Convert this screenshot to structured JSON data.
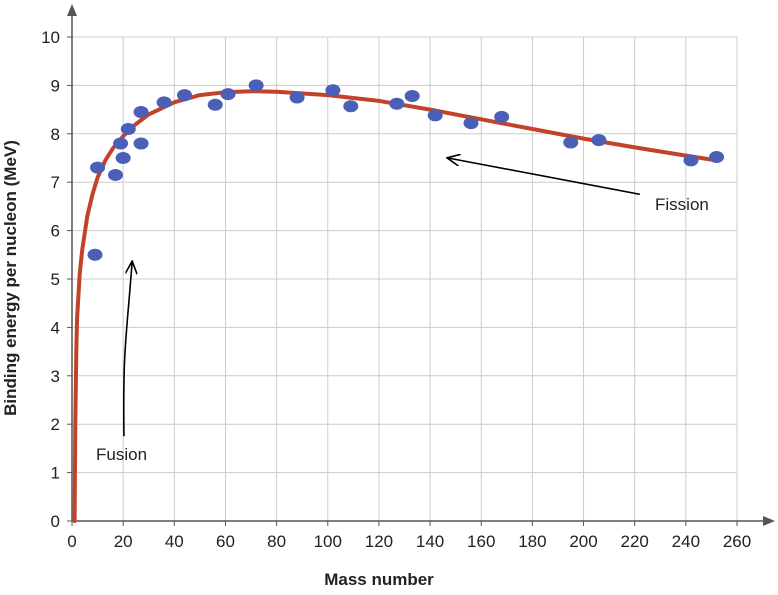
{
  "chart_data": {
    "type": "scatter",
    "title": "",
    "xlabel": "Mass number",
    "ylabel": "Binding energy per nucleon (MeV)",
    "xlim": [
      0,
      260
    ],
    "ylim": [
      0,
      10
    ],
    "x_ticks": [
      0,
      20,
      40,
      60,
      80,
      100,
      120,
      140,
      160,
      180,
      200,
      220,
      240,
      260
    ],
    "y_ticks": [
      0,
      1,
      2,
      3,
      4,
      5,
      6,
      7,
      8,
      9,
      10
    ],
    "grid": true,
    "colors": {
      "points": "#4a5fb5",
      "curve": "#c2432a",
      "grid": "#cccccc",
      "axis": "#555555",
      "arrow": "#000000"
    },
    "points": [
      {
        "x": 9,
        "y": 5.5
      },
      {
        "x": 10,
        "y": 7.3
      },
      {
        "x": 17,
        "y": 7.15
      },
      {
        "x": 19,
        "y": 7.8
      },
      {
        "x": 20,
        "y": 7.5
      },
      {
        "x": 22,
        "y": 8.1
      },
      {
        "x": 27,
        "y": 7.8
      },
      {
        "x": 27,
        "y": 8.45
      },
      {
        "x": 36,
        "y": 8.65
      },
      {
        "x": 44,
        "y": 8.8
      },
      {
        "x": 56,
        "y": 8.6
      },
      {
        "x": 61,
        "y": 8.82
      },
      {
        "x": 72,
        "y": 9.0
      },
      {
        "x": 88,
        "y": 8.75
      },
      {
        "x": 102,
        "y": 8.9
      },
      {
        "x": 109,
        "y": 8.57
      },
      {
        "x": 127,
        "y": 8.62
      },
      {
        "x": 133,
        "y": 8.78
      },
      {
        "x": 142,
        "y": 8.38
      },
      {
        "x": 156,
        "y": 8.22
      },
      {
        "x": 168,
        "y": 8.35
      },
      {
        "x": 195,
        "y": 7.82
      },
      {
        "x": 206,
        "y": 7.87
      },
      {
        "x": 242,
        "y": 7.45
      },
      {
        "x": 252,
        "y": 7.52
      }
    ],
    "curve": [
      {
        "x": 1,
        "y": 0
      },
      {
        "x": 1.3,
        "y": 2
      },
      {
        "x": 1.7,
        "y": 3.5
      },
      {
        "x": 2,
        "y": 4.2
      },
      {
        "x": 3,
        "y": 5.1
      },
      {
        "x": 4,
        "y": 5.6
      },
      {
        "x": 6,
        "y": 6.3
      },
      {
        "x": 8,
        "y": 6.75
      },
      {
        "x": 10,
        "y": 7.1
      },
      {
        "x": 13,
        "y": 7.45
      },
      {
        "x": 16,
        "y": 7.7
      },
      {
        "x": 20,
        "y": 7.95
      },
      {
        "x": 25,
        "y": 8.2
      },
      {
        "x": 30,
        "y": 8.4
      },
      {
        "x": 40,
        "y": 8.65
      },
      {
        "x": 50,
        "y": 8.8
      },
      {
        "x": 60,
        "y": 8.86
      },
      {
        "x": 70,
        "y": 8.88
      },
      {
        "x": 80,
        "y": 8.87
      },
      {
        "x": 100,
        "y": 8.8
      },
      {
        "x": 120,
        "y": 8.68
      },
      {
        "x": 140,
        "y": 8.5
      },
      {
        "x": 160,
        "y": 8.3
      },
      {
        "x": 180,
        "y": 8.1
      },
      {
        "x": 200,
        "y": 7.9
      },
      {
        "x": 220,
        "y": 7.72
      },
      {
        "x": 240,
        "y": 7.55
      },
      {
        "x": 252,
        "y": 7.45
      }
    ],
    "annotations": [
      {
        "name": "fusion",
        "text": "Fusion",
        "arrow_from": {
          "x": 20.3,
          "y": 1.75
        },
        "arrow_to": {
          "x": 23.5,
          "y": 5.35
        }
      },
      {
        "name": "fission",
        "text": "Fission",
        "arrow_from": {
          "x": 222,
          "y": 6.75
        },
        "arrow_to": {
          "x": 147,
          "y": 7.5
        }
      }
    ]
  }
}
